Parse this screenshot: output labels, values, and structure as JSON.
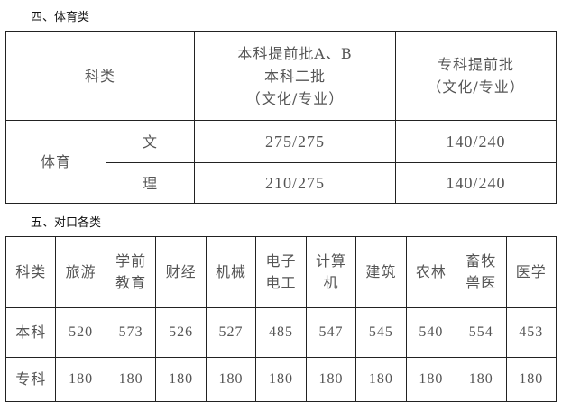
{
  "section4": {
    "title": "四、体育类",
    "header": {
      "category": "科类",
      "col1": [
        "本科提前批A、B",
        "本科二批",
        "（文化/专业）"
      ],
      "col2": [
        "专科提前批",
        "（文化/专业）"
      ]
    },
    "group": "体育",
    "rows": [
      {
        "label": "文",
        "v1": "275/275",
        "v2": "140/240"
      },
      {
        "label": "理",
        "v1": "210/275",
        "v2": "140/240"
      }
    ]
  },
  "section5": {
    "title": "五、对口各类",
    "headers": [
      [
        "科类"
      ],
      [
        "旅游"
      ],
      [
        "学前",
        "教育"
      ],
      [
        "财经"
      ],
      [
        "机械"
      ],
      [
        "电子",
        "电工"
      ],
      [
        "计算",
        "机"
      ],
      [
        "建筑"
      ],
      [
        "农林"
      ],
      [
        "畜牧",
        "兽医"
      ],
      [
        "医学"
      ]
    ],
    "rows": [
      {
        "label": "本科",
        "values": [
          "520",
          "573",
          "526",
          "527",
          "485",
          "547",
          "545",
          "540",
          "554",
          "453"
        ]
      },
      {
        "label": "专科",
        "values": [
          "180",
          "180",
          "180",
          "180",
          "180",
          "180",
          "180",
          "180",
          "180",
          "180"
        ]
      }
    ]
  }
}
